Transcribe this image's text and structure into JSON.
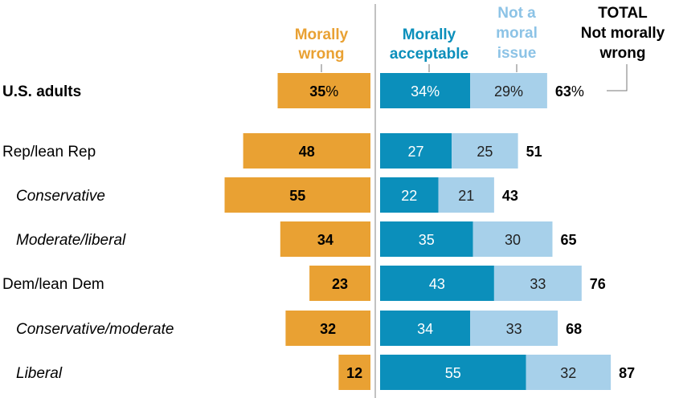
{
  "chart_data": {
    "type": "bar",
    "orientation": "horizontal-diverging-stacked",
    "headers": {
      "wrong": [
        "Morally",
        "wrong"
      ],
      "acceptable": [
        "Morally",
        "acceptable"
      ],
      "not_moral": [
        "Not a",
        "moral",
        "issue"
      ],
      "total": [
        "TOTAL",
        "Not morally",
        "wrong"
      ]
    },
    "percent_sign": "%",
    "series": [
      {
        "key": "wrong",
        "name": "Morally wrong",
        "color": "#e9a133"
      },
      {
        "key": "acceptable",
        "name": "Morally acceptable",
        "color": "#0b8fbb"
      },
      {
        "key": "not_moral",
        "name": "Not a moral issue",
        "color": "#a7d0ea"
      }
    ],
    "categories": [
      {
        "label": "U.S. adults",
        "style": "bold",
        "wrong": 35,
        "acceptable": 34,
        "not_moral": 29,
        "total": 63,
        "show_percent": true
      },
      {
        "label": "Rep/lean Rep",
        "style": "normal",
        "wrong": 48,
        "acceptable": 27,
        "not_moral": 25,
        "total": 51
      },
      {
        "label": "Conservative",
        "style": "italic",
        "wrong": 55,
        "acceptable": 22,
        "not_moral": 21,
        "total": 43
      },
      {
        "label": "Moderate/liberal",
        "style": "italic",
        "wrong": 34,
        "acceptable": 35,
        "not_moral": 30,
        "total": 65
      },
      {
        "label": "Dem/lean Dem",
        "style": "normal",
        "wrong": 23,
        "acceptable": 43,
        "not_moral": 33,
        "total": 76
      },
      {
        "label": "Conservative/moderate",
        "style": "italic",
        "wrong": 32,
        "acceptable": 34,
        "not_moral": 33,
        "total": 68
      },
      {
        "label": "Liberal",
        "style": "italic",
        "wrong": 12,
        "acceptable": 55,
        "not_moral": 32,
        "total": 87
      }
    ],
    "colors": {
      "wrong": "#e9a133",
      "acceptable": "#0b8fbb",
      "not_moral": "#a7d0ea",
      "divider": "#999999"
    }
  }
}
